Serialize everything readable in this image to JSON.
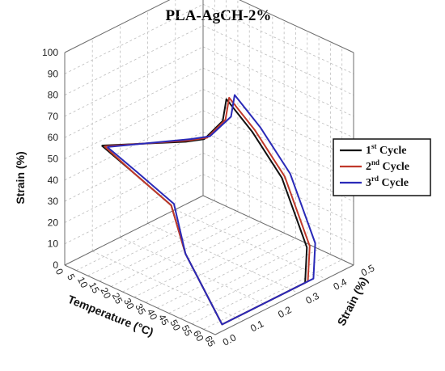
{
  "chart_data": {
    "type": "line",
    "title": "PLA-AgCH-2%",
    "xlabel": "Temperature (°C)",
    "ylabel": "Strain (%)",
    "zlabel": "Strain (%)",
    "z_axis_position": "vertical-left",
    "x_ticks": [
      "0",
      "5",
      "10",
      "15",
      "20",
      "25",
      "30",
      "35",
      "40",
      "45",
      "50",
      "55",
      "60",
      "65"
    ],
    "xlim": [
      0,
      65
    ],
    "y_ticks": [
      "0.0",
      "0.1",
      "0.2",
      "0.3",
      "0.4",
      "0.5"
    ],
    "ylim": [
      0,
      0.5
    ],
    "z_ticks": [
      "0",
      "10",
      "20",
      "30",
      "40",
      "50",
      "60",
      "70",
      "80",
      "90",
      "100"
    ],
    "zlim": [
      0,
      100
    ],
    "grid": true,
    "legend_position": "right",
    "series": [
      {
        "name": "1st Cycle",
        "legend_main": "1",
        "legend_sup": "st",
        "legend_rest": " Cycle",
        "color": "#111111",
        "points": [
          [
            10,
            0.05,
            58
          ],
          [
            32,
            0.17,
            63
          ],
          [
            34,
            0.22,
            62
          ],
          [
            30,
            0.32,
            62
          ],
          [
            22,
            0.4,
            63
          ],
          [
            32,
            0.41,
            52
          ],
          [
            46,
            0.4,
            38
          ],
          [
            58,
            0.39,
            12
          ],
          [
            62,
            0.35,
            0
          ],
          [
            62,
            0.05,
            0
          ],
          [
            45,
            0.06,
            24
          ],
          [
            40,
            0.05,
            45
          ],
          [
            24,
            0.05,
            52
          ],
          [
            10,
            0.05,
            58
          ]
        ]
      },
      {
        "name": "2nd Cycle",
        "legend_main": "2",
        "legend_sup": "nd",
        "legend_rest": " Cycle",
        "color": "#c0392b",
        "points": [
          [
            10,
            0.06,
            57
          ],
          [
            32,
            0.18,
            63
          ],
          [
            34,
            0.23,
            62
          ],
          [
            30,
            0.33,
            62
          ],
          [
            22,
            0.41,
            63
          ],
          [
            32,
            0.42,
            52
          ],
          [
            46,
            0.41,
            38
          ],
          [
            58,
            0.4,
            12
          ],
          [
            62,
            0.36,
            0
          ],
          [
            62,
            0.05,
            0
          ],
          [
            45,
            0.06,
            24
          ],
          [
            40,
            0.05,
            45
          ],
          [
            24,
            0.05,
            52
          ],
          [
            10,
            0.06,
            57
          ]
        ]
      },
      {
        "name": "3rd Cycle",
        "legend_main": "3",
        "legend_sup": "rd",
        "legend_rest": " Cycle",
        "color": "#2a2ab8",
        "points": [
          [
            10,
            0.07,
            56
          ],
          [
            32,
            0.19,
            63
          ],
          [
            34,
            0.24,
            62
          ],
          [
            30,
            0.35,
            62
          ],
          [
            22,
            0.43,
            63
          ],
          [
            32,
            0.44,
            52
          ],
          [
            46,
            0.43,
            38
          ],
          [
            58,
            0.42,
            12
          ],
          [
            62,
            0.38,
            0
          ],
          [
            62,
            0.05,
            0
          ],
          [
            45,
            0.06,
            24
          ],
          [
            40,
            0.06,
            45
          ],
          [
            24,
            0.06,
            52
          ],
          [
            10,
            0.07,
            56
          ]
        ]
      }
    ]
  }
}
